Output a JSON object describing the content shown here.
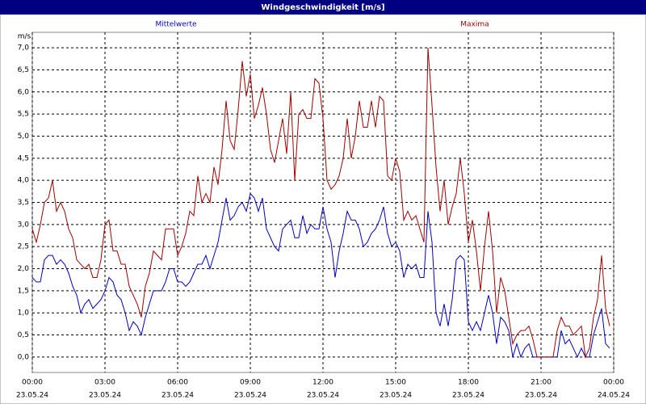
{
  "chart_data": {
    "type": "line",
    "title": "Windgeschwindigkeit [m/s]",
    "y_label": "m/s",
    "xlim": [
      0,
      1440
    ],
    "xticks": [
      {
        "value": 0,
        "label": "00:00",
        "sublabel": "23.05.24"
      },
      {
        "value": 180,
        "label": "03:00",
        "sublabel": "23.05.24"
      },
      {
        "value": 360,
        "label": "06:00",
        "sublabel": "23.05.24"
      },
      {
        "value": 540,
        "label": "09:00",
        "sublabel": "23.05.24"
      },
      {
        "value": 720,
        "label": "12:00",
        "sublabel": "23.05.24"
      },
      {
        "value": 900,
        "label": "15:00",
        "sublabel": "23.05.24"
      },
      {
        "value": 1080,
        "label": "18:00",
        "sublabel": "23.05.24"
      },
      {
        "value": 1260,
        "label": "21:00",
        "sublabel": "23.05.24"
      },
      {
        "value": 1440,
        "label": "00:00",
        "sublabel": "24.05.24"
      }
    ],
    "ylim": [
      -0.35,
      7.35
    ],
    "yticks": [
      {
        "value": 0,
        "label": "0,0"
      },
      {
        "value": 0.5,
        "label": "0,5"
      },
      {
        "value": 1,
        "label": "1,0"
      },
      {
        "value": 1.5,
        "label": "1,5"
      },
      {
        "value": 2,
        "label": "2,0"
      },
      {
        "value": 2.5,
        "label": "2,5"
      },
      {
        "value": 3,
        "label": "3,0"
      },
      {
        "value": 3.5,
        "label": "3,5"
      },
      {
        "value": 4,
        "label": "4,0"
      },
      {
        "value": 4.5,
        "label": "4,5"
      },
      {
        "value": 5,
        "label": "5,0"
      },
      {
        "value": 5.5,
        "label": "5,5"
      },
      {
        "value": 6,
        "label": "6,0"
      },
      {
        "value": 6.5,
        "label": "6,5"
      },
      {
        "value": 7,
        "label": "7,0"
      }
    ],
    "grid": true,
    "x": [
      0,
      10,
      20,
      30,
      40,
      50,
      60,
      70,
      80,
      90,
      100,
      110,
      120,
      130,
      140,
      150,
      160,
      170,
      180,
      190,
      200,
      210,
      220,
      230,
      240,
      250,
      260,
      270,
      280,
      290,
      300,
      310,
      320,
      330,
      340,
      350,
      360,
      370,
      380,
      390,
      400,
      410,
      420,
      430,
      440,
      450,
      460,
      470,
      480,
      490,
      500,
      510,
      520,
      530,
      540,
      550,
      560,
      570,
      580,
      590,
      600,
      610,
      620,
      630,
      640,
      650,
      660,
      670,
      680,
      690,
      700,
      710,
      720,
      730,
      740,
      750,
      760,
      770,
      780,
      790,
      800,
      810,
      820,
      830,
      840,
      850,
      860,
      870,
      880,
      890,
      900,
      910,
      920,
      930,
      940,
      950,
      960,
      970,
      980,
      990,
      1000,
      1010,
      1020,
      1030,
      1040,
      1050,
      1060,
      1070,
      1080,
      1090,
      1100,
      1110,
      1120,
      1130,
      1140,
      1150,
      1160,
      1170,
      1180,
      1190,
      1200,
      1210,
      1220,
      1230,
      1240,
      1250,
      1260,
      1270,
      1280,
      1290,
      1300,
      1310,
      1320,
      1330,
      1340,
      1350,
      1360,
      1370,
      1380,
      1390,
      1400,
      1410,
      1420,
      1430
    ],
    "series": [
      {
        "name": "Mittelwerte",
        "color": "#0000c0",
        "values": [
          1.8,
          1.7,
          1.7,
          2.2,
          2.3,
          2.3,
          2.1,
          2.2,
          2.1,
          1.9,
          1.6,
          1.4,
          1.0,
          1.2,
          1.3,
          1.1,
          1.2,
          1.3,
          1.5,
          1.8,
          1.7,
          1.4,
          1.3,
          1.0,
          0.6,
          0.8,
          0.7,
          0.5,
          0.9,
          1.2,
          1.5,
          1.5,
          1.5,
          1.7,
          2.0,
          2.0,
          1.7,
          1.7,
          1.6,
          1.7,
          1.9,
          2.1,
          2.1,
          2.3,
          2.0,
          2.3,
          2.6,
          3.1,
          3.6,
          3.1,
          3.2,
          3.4,
          3.5,
          3.3,
          3.7,
          3.6,
          3.3,
          3.6,
          2.9,
          2.7,
          2.5,
          2.4,
          2.9,
          3.0,
          3.1,
          2.7,
          2.7,
          3.2,
          2.8,
          3.0,
          2.9,
          2.9,
          3.4,
          2.9,
          2.6,
          1.8,
          2.4,
          2.8,
          3.3,
          3.1,
          3.1,
          2.9,
          2.5,
          2.6,
          2.8,
          2.9,
          3.1,
          3.4,
          2.8,
          2.5,
          2.6,
          2.4,
          1.8,
          2.1,
          2.0,
          2.1,
          1.8,
          1.8,
          3.3,
          2.6,
          1.0,
          0.7,
          1.2,
          0.7,
          1.3,
          2.2,
          2.3,
          2.2,
          0.8,
          0.6,
          0.8,
          0.6,
          1.0,
          1.4,
          1.0,
          0.3,
          0.9,
          0.8,
          0.6,
          0.0,
          0.3,
          0.0,
          0.2,
          0.3,
          0.0,
          0.0,
          0.0,
          0.0,
          0.0,
          0.0,
          0.0,
          0.6,
          0.3,
          0.4,
          0.2,
          0.0,
          0.2,
          0.0,
          0.0,
          0.5,
          0.8,
          1.1,
          0.3,
          0.2
        ]
      },
      {
        "name": "Maxima",
        "color": "#a00000",
        "values": [
          2.9,
          2.6,
          3.0,
          3.5,
          3.6,
          4.0,
          3.3,
          3.5,
          3.3,
          2.9,
          2.7,
          2.2,
          2.1,
          2.0,
          2.1,
          1.8,
          1.8,
          2.2,
          3.0,
          3.1,
          2.4,
          2.4,
          2.1,
          2.1,
          1.6,
          1.4,
          1.2,
          0.9,
          1.6,
          1.9,
          2.4,
          2.3,
          2.2,
          2.9,
          2.9,
          2.9,
          2.3,
          2.5,
          2.8,
          3.3,
          3.2,
          4.1,
          3.5,
          3.7,
          3.5,
          4.3,
          3.9,
          4.7,
          5.8,
          4.9,
          4.7,
          5.6,
          6.7,
          5.9,
          6.4,
          5.4,
          5.7,
          6.1,
          5.5,
          4.7,
          4.4,
          4.9,
          5.4,
          4.6,
          6.0,
          4.0,
          5.5,
          5.6,
          5.4,
          5.4,
          6.3,
          6.2,
          5.4,
          4.0,
          3.8,
          3.9,
          4.1,
          4.5,
          5.4,
          4.5,
          5.0,
          5.8,
          5.2,
          5.2,
          5.8,
          5.2,
          5.9,
          5.8,
          4.1,
          4.0,
          4.5,
          4.2,
          3.1,
          3.3,
          3.1,
          3.2,
          2.9,
          2.6,
          7.0,
          5.7,
          4.3,
          3.3,
          4.0,
          3.0,
          3.4,
          3.7,
          4.5,
          3.7,
          2.6,
          3.1,
          2.4,
          1.5,
          2.5,
          3.3,
          2.4,
          1.0,
          1.8,
          1.5,
          0.9,
          0.3,
          0.5,
          0.6,
          0.6,
          0.7,
          0.4,
          0.0,
          0.0,
          0.0,
          0.0,
          0.0,
          0.6,
          0.9,
          0.7,
          0.7,
          0.5,
          0.6,
          0.7,
          0.0,
          0.2,
          0.9,
          1.3,
          2.3,
          1.1,
          0.7
        ]
      }
    ]
  }
}
